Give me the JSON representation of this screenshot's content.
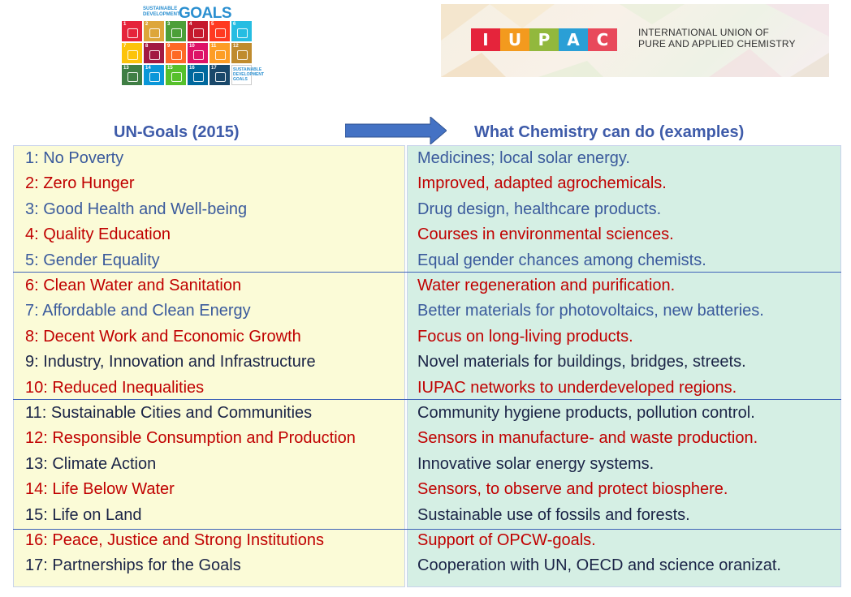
{
  "sdg_logo": {
    "small_text": "SUSTAINABLE DEVELOPMENT",
    "big_text": "GOALS",
    "tiles": [
      {
        "n": "1",
        "color": "#e5243b"
      },
      {
        "n": "2",
        "color": "#dda63a"
      },
      {
        "n": "3",
        "color": "#4c9f38"
      },
      {
        "n": "4",
        "color": "#c5192d"
      },
      {
        "n": "5",
        "color": "#ff3a21"
      },
      {
        "n": "6",
        "color": "#26bde2"
      },
      {
        "n": "7",
        "color": "#fcc30b"
      },
      {
        "n": "8",
        "color": "#a21942"
      },
      {
        "n": "9",
        "color": "#fd6925"
      },
      {
        "n": "10",
        "color": "#dd1367"
      },
      {
        "n": "11",
        "color": "#fd9d24"
      },
      {
        "n": "12",
        "color": "#bf8b2e"
      },
      {
        "n": "13",
        "color": "#3f7e44"
      },
      {
        "n": "14",
        "color": "#0a97d9"
      },
      {
        "n": "15",
        "color": "#56c02b"
      },
      {
        "n": "16",
        "color": "#00689d"
      },
      {
        "n": "17",
        "color": "#19486a"
      }
    ],
    "goals_tile_text": "SUSTAINABLE DEVELOPMENT GOALS"
  },
  "iupac_logo": {
    "letters": [
      {
        "ch": "I",
        "color": "#e5243b"
      },
      {
        "ch": "U",
        "color": "#f39a1e"
      },
      {
        "ch": "P",
        "color": "#92b83d"
      },
      {
        "ch": "A",
        "color": "#2a9fd6"
      },
      {
        "ch": "C",
        "color": "#e8495b"
      }
    ],
    "name_line1": "INTERNATIONAL UNION OF",
    "name_line2": "PURE AND APPLIED CHEMISTRY"
  },
  "headers": {
    "left": "UN-Goals (2015)",
    "right": "What Chemistry can do (examples)"
  },
  "colors": {
    "header_blue": "#3e5ba9",
    "arrow_blue": "#4472c4",
    "left_bg": "#fbfbd7",
    "right_bg": "#d5efe4",
    "text_blue": "#3a5a9c",
    "text_red": "#c00000",
    "text_dark": "#1a2346"
  },
  "rows": [
    {
      "goal": "1: No Poverty",
      "chem": "Medicines; local solar energy.",
      "color": "blue"
    },
    {
      "goal": "2: Zero Hunger",
      "chem": "Improved, adapted agrochemicals.",
      "color": "red"
    },
    {
      "goal": "3: Good Health and Well-being",
      "chem": "Drug design, healthcare products.",
      "color": "blue"
    },
    {
      "goal": "4: Quality Education",
      "chem": "Courses in environmental sciences.",
      "color": "red"
    },
    {
      "goal": "5: Gender Equality",
      "chem": "Equal gender chances among chemists.",
      "color": "blue"
    },
    {
      "goal": "6: Clean Water and Sanitation",
      "chem": "Water regeneration and purification.",
      "color": "red"
    },
    {
      "goal": "7: Affordable and Clean Energy",
      "chem": "Better materials for photovoltaics, new batteries.",
      "color": "blue"
    },
    {
      "goal": "8: Decent Work and Economic Growth",
      "chem": "Focus on long-living products.",
      "color": "red"
    },
    {
      "goal": "9: Industry, Innovation and Infrastructure",
      "chem": "Novel materials for buildings, bridges, streets.",
      "color": "dark"
    },
    {
      "goal": "10: Reduced Inequalities",
      "chem": "IUPAC networks to underdeveloped regions.",
      "color": "red"
    },
    {
      "goal": "11: Sustainable Cities and Communities",
      "chem": "Community hygiene products, pollution control.",
      "color": "dark"
    },
    {
      "goal": "12: Responsible Consumption and Production",
      "chem": "Sensors in manufacture- and waste production.",
      "color": "red"
    },
    {
      "goal": "13: Climate Action",
      "chem": "Innovative solar energy systems.",
      "color": "dark"
    },
    {
      "goal": "14: Life Below Water",
      "chem": "Sensors, to observe and protect biosphere.",
      "color": "red"
    },
    {
      "goal": "15: Life on Land",
      "chem": "Sustainable use of fossils and forests.",
      "color": "dark"
    },
    {
      "goal": "16: Peace, Justice and Strong Institutions",
      "chem": "Support of OPCW-goals.",
      "color": "red"
    },
    {
      "goal": "17: Partnerships for the Goals",
      "chem": "Cooperation with UN, OECD and science oranizat.",
      "color": "dark"
    }
  ]
}
